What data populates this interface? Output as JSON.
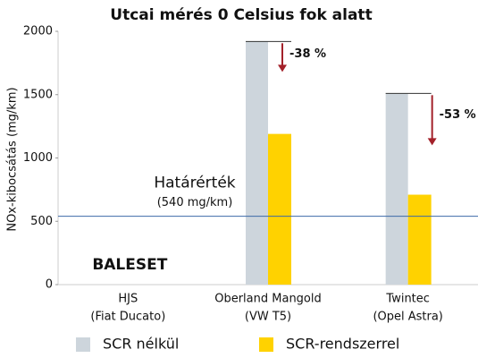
{
  "chart_data": {
    "type": "bar",
    "title": "Utcai mérés 0 Celsius fok alatt",
    "y_label": "NOx-kibocsátás (mg/km)",
    "categories": [
      [
        "HJS",
        "(Fiat Ducato)"
      ],
      [
        "Oberland Mangold",
        "(VW T5)"
      ],
      [
        "Twintec",
        "(Opel Astra)"
      ]
    ],
    "series": [
      {
        "name": "SCR nélkül",
        "color": "#cdd5dc",
        "values": [
          null,
          1920,
          1510
        ]
      },
      {
        "name": "SCR-rendszerrel",
        "color": "#ffd200",
        "values": [
          null,
          1190,
          710
        ]
      }
    ],
    "ylim": [
      0,
      2000
    ],
    "yticks": [
      0,
      500,
      1000,
      1500,
      2000
    ],
    "threshold": {
      "value": 540,
      "title": "Határérték",
      "label": "(540 mg/km)",
      "color": "#3d6aa8"
    },
    "annotations": [
      {
        "text": "BALESET",
        "category": 0,
        "color": "#a3212a"
      },
      {
        "text": "-38 %",
        "category": 1,
        "color": "#a3212a"
      },
      {
        "text": "-53 %",
        "category": 2,
        "color": "#a3212a"
      }
    ],
    "legend": "bottom"
  }
}
